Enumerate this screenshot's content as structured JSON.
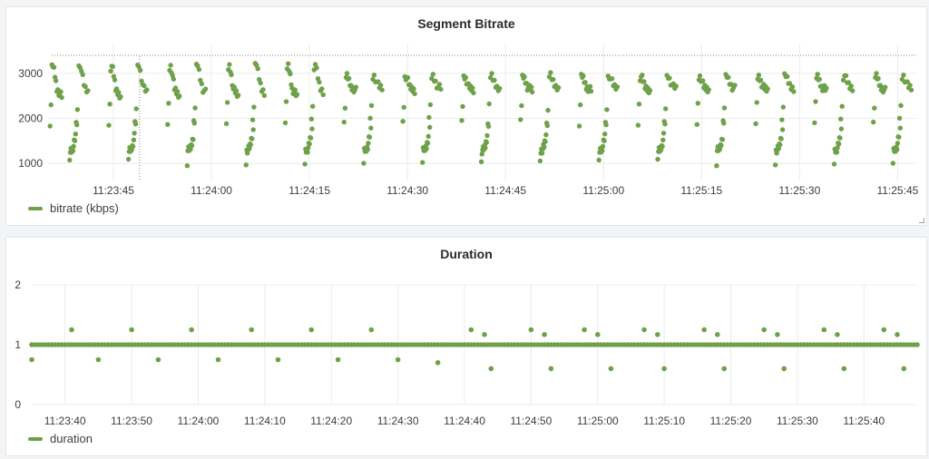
{
  "colors": {
    "series": "#6ea14a",
    "grid": "#ececec"
  },
  "panels": [
    {
      "title": "Segment Bitrate",
      "legend_label": "bitrate (kbps)",
      "x_ticks": [
        "11:23:45",
        "11:24:00",
        "11:24:15",
        "11:24:30",
        "11:24:45",
        "11:25:00",
        "11:25:15",
        "11:25:30",
        "11:25:45"
      ],
      "y_ticks": [
        "1000",
        "2000",
        "3000"
      ]
    },
    {
      "title": "Duration",
      "legend_label": "duration",
      "x_ticks": [
        "11:23:40",
        "11:23:50",
        "11:24:00",
        "11:24:10",
        "11:24:20",
        "11:24:30",
        "11:24:40",
        "11:24:50",
        "11:25:00",
        "11:25:10",
        "11:25:20",
        "11:25:30",
        "11:25:40"
      ],
      "y_ticks": [
        "0",
        "1",
        "2"
      ]
    }
  ],
  "chart_data": [
    {
      "type": "scatter",
      "title": "Segment Bitrate",
      "series": [
        {
          "name": "bitrate (kbps)",
          "unit": "kbps"
        }
      ],
      "x_range": [
        "11:23:35",
        "11:25:48"
      ],
      "ylim": [
        600,
        3500
      ],
      "y_ticks": [
        1000,
        2000,
        3000
      ],
      "grid": true,
      "legend": "bottom-left",
      "annotations": [
        "dotted horizontal line near 3400",
        "dotted vertical line near 11:23:49"
      ],
      "pattern": {
        "cycle_seconds": 9,
        "first_cycle_start": "11:23:35",
        "cycles": 15,
        "description": "repeating sawtooth: low cluster ~1000-1500 rising, then jump to ~2000-2300, then peak ~3000-3200 decaying to ~2500 (later cycles peak ~2900-3000 and level ~2600-2700)",
        "points": [
          [
            0.0,
            1900
          ],
          [
            0.15,
            2300
          ],
          [
            0.3,
            3120
          ],
          [
            0.45,
            3160
          ],
          [
            0.6,
            3080
          ],
          [
            0.75,
            2950
          ],
          [
            0.9,
            2800
          ],
          [
            1.05,
            2650
          ],
          [
            1.2,
            2620
          ],
          [
            1.35,
            2580
          ],
          [
            1.5,
            2560
          ],
          [
            1.65,
            2520
          ],
          [
            1.8,
            2480
          ],
          [
            3.0,
            1020
          ],
          [
            3.1,
            1280
          ],
          [
            3.2,
            1300
          ],
          [
            3.3,
            1300
          ],
          [
            3.4,
            1320
          ],
          [
            3.5,
            1350
          ],
          [
            3.6,
            1380
          ],
          [
            3.7,
            1450
          ],
          [
            3.8,
            1520
          ],
          [
            3.9,
            1600
          ],
          [
            4.0,
            1950
          ],
          [
            4.1,
            1820
          ],
          [
            4.2,
            2250
          ],
          [
            4.4,
            3150
          ],
          [
            4.6,
            3200
          ],
          [
            4.8,
            3050
          ],
          [
            5.0,
            2900
          ],
          [
            5.2,
            2750
          ],
          [
            5.4,
            2650
          ],
          [
            5.6,
            2620
          ],
          [
            5.8,
            2580
          ]
        ]
      }
    },
    {
      "type": "scatter",
      "title": "Duration",
      "series": [
        {
          "name": "duration"
        }
      ],
      "x_range": [
        "11:23:35",
        "11:25:48"
      ],
      "ylim": [
        0,
        2
      ],
      "y_ticks": [
        0,
        1,
        2
      ],
      "grid": true,
      "legend": "bottom-left",
      "baseline_value": 1.0,
      "outliers": [
        [
          "11:23:35",
          0.75
        ],
        [
          "11:23:41",
          1.25
        ],
        [
          "11:23:45",
          0.75
        ],
        [
          "11:23:50",
          1.25
        ],
        [
          "11:23:54",
          0.75
        ],
        [
          "11:23:59",
          1.25
        ],
        [
          "11:24:03",
          0.75
        ],
        [
          "11:24:08",
          1.25
        ],
        [
          "11:24:12",
          0.75
        ],
        [
          "11:24:17",
          1.25
        ],
        [
          "11:24:21",
          0.75
        ],
        [
          "11:24:26",
          1.25
        ],
        [
          "11:24:30",
          0.75
        ],
        [
          "11:24:36",
          0.7
        ],
        [
          "11:24:41",
          1.25
        ],
        [
          "11:24:43",
          1.17
        ],
        [
          "11:24:44",
          0.6
        ],
        [
          "11:24:50",
          1.25
        ],
        [
          "11:24:52",
          1.17
        ],
        [
          "11:24:53",
          0.6
        ],
        [
          "11:24:58",
          1.25
        ],
        [
          "11:25:00",
          1.17
        ],
        [
          "11:25:02",
          0.6
        ],
        [
          "11:25:07",
          1.25
        ],
        [
          "11:25:09",
          1.17
        ],
        [
          "11:25:10",
          0.6
        ],
        [
          "11:25:16",
          1.25
        ],
        [
          "11:25:18",
          1.17
        ],
        [
          "11:25:19",
          0.6
        ],
        [
          "11:25:25",
          1.25
        ],
        [
          "11:25:27",
          1.17
        ],
        [
          "11:25:28",
          0.6
        ],
        [
          "11:25:34",
          1.25
        ],
        [
          "11:25:36",
          1.17
        ],
        [
          "11:25:37",
          0.6
        ],
        [
          "11:25:43",
          1.25
        ],
        [
          "11:25:45",
          1.17
        ],
        [
          "11:25:46",
          0.6
        ]
      ]
    }
  ]
}
